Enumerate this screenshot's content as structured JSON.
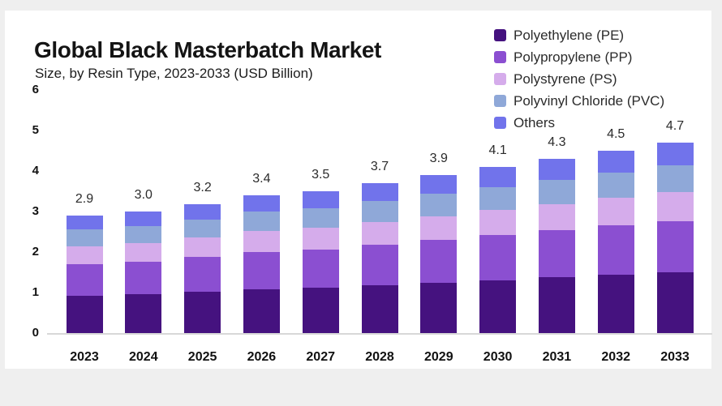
{
  "page": {
    "background": "#efefef",
    "card_background": "#ffffff"
  },
  "header": {
    "title": "Global Black Masterbatch Market",
    "subtitle": "Size, by Resin Type, 2023-2033 (USD Billion)"
  },
  "chart_data": {
    "type": "bar",
    "stacked": true,
    "title": "Global Black Masterbatch Market",
    "subtitle": "Size, by Resin Type, 2023-2033 (USD Billion)",
    "unit": "USD Billion",
    "categories": [
      "2023",
      "2024",
      "2025",
      "2026",
      "2027",
      "2028",
      "2029",
      "2030",
      "2031",
      "2032",
      "2033"
    ],
    "totals": [
      2.9,
      3.0,
      3.2,
      3.4,
      3.5,
      3.7,
      3.9,
      4.1,
      4.3,
      4.5,
      4.7
    ],
    "total_labels": [
      "2.9",
      "3.0",
      "3.2",
      "3.4",
      "3.5",
      "3.7",
      "3.9",
      "4.1",
      "4.3",
      "4.5",
      "4.7"
    ],
    "series": [
      {
        "name": "Polyethylene (PE)",
        "color": "#45127f",
        "values": [
          0.93,
          0.96,
          1.02,
          1.09,
          1.12,
          1.18,
          1.25,
          1.31,
          1.38,
          1.44,
          1.5
        ]
      },
      {
        "name": "Polypropylene (PP)",
        "color": "#8b4fd1",
        "values": [
          0.78,
          0.81,
          0.86,
          0.92,
          0.95,
          1.0,
          1.05,
          1.11,
          1.16,
          1.22,
          1.27
        ]
      },
      {
        "name": "Polystyrene (PS)",
        "color": "#d5aceb",
        "values": [
          0.44,
          0.45,
          0.48,
          0.51,
          0.53,
          0.56,
          0.59,
          0.62,
          0.65,
          0.68,
          0.71
        ]
      },
      {
        "name": "Polyvinyl Chloride (PVC)",
        "color": "#8fa8d8",
        "values": [
          0.41,
          0.42,
          0.45,
          0.48,
          0.49,
          0.52,
          0.55,
          0.57,
          0.6,
          0.63,
          0.66
        ]
      },
      {
        "name": "Others",
        "color": "#7173eb",
        "values": [
          0.35,
          0.36,
          0.38,
          0.41,
          0.42,
          0.44,
          0.47,
          0.49,
          0.52,
          0.54,
          0.56
        ]
      }
    ],
    "ylim": [
      0,
      6
    ],
    "yticks": [
      0,
      1,
      2,
      3,
      4,
      5,
      6
    ],
    "xlabel": "",
    "ylabel": "",
    "grid": false,
    "legend_position": "top-right",
    "axis_color": "#111111",
    "value_label_color": "#2b2b2b",
    "baseline_color": "#d8d8d8"
  }
}
